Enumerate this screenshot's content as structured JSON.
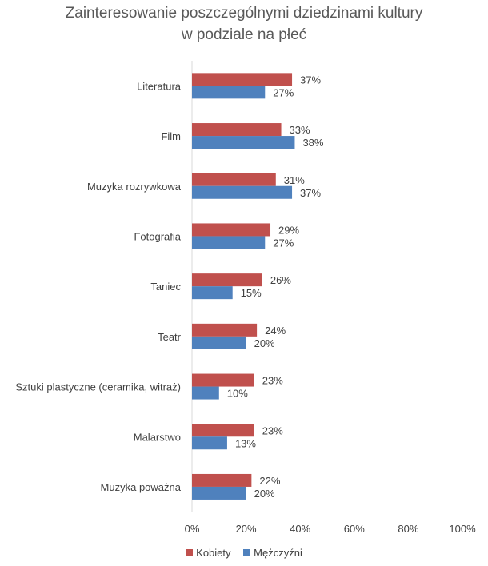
{
  "chart_data": {
    "type": "bar",
    "orientation": "horizontal",
    "title": [
      "Zainteresowanie poszczególnymi dziedzinami kultury",
      "w podziale na płeć"
    ],
    "categories": [
      "Literatura",
      "Film",
      "Muzyka rozrywkowa",
      "Fotografia",
      "Taniec",
      "Teatr",
      "Sztuki plastyczne (ceramika, witraż)",
      "Malarstwo",
      "Muzyka poważna"
    ],
    "series": [
      {
        "name": "Kobiety",
        "color": "#C0504D",
        "values": [
          37,
          33,
          31,
          29,
          26,
          24,
          23,
          23,
          22
        ],
        "labels": [
          "37%",
          "33%",
          "31%",
          "29%",
          "26%",
          "24%",
          "23%",
          "23%",
          "22%"
        ]
      },
      {
        "name": "Mężczyźni",
        "color": "#4F81BD",
        "values": [
          27,
          38,
          37,
          27,
          15,
          20,
          10,
          13,
          20
        ],
        "labels": [
          "27%",
          "38%",
          "37%",
          "27%",
          "15%",
          "20%",
          "10%",
          "13%",
          "20%"
        ]
      }
    ],
    "xlim": [
      0,
      100
    ],
    "xticks": [
      "0%",
      "20%",
      "40%",
      "60%",
      "80%",
      "100%"
    ],
    "legend_position": "bottom",
    "grid": false
  }
}
